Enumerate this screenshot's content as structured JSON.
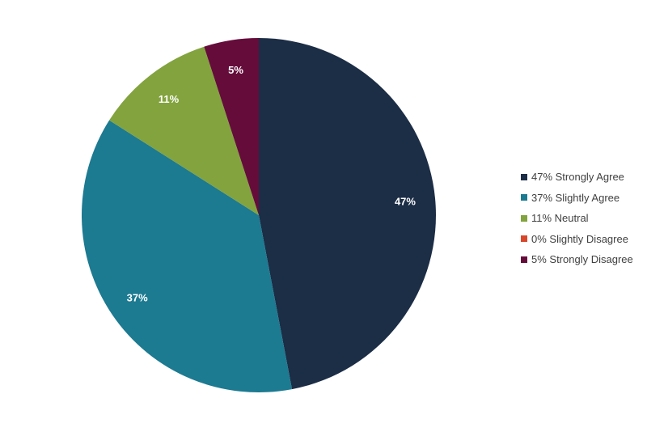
{
  "chart_data": {
    "type": "pie",
    "title": "",
    "start_angle_deg": 0,
    "direction": "clockwise",
    "legend_position": "right",
    "slices": [
      {
        "label": "47% Strongly Agree",
        "value": 47,
        "display": "47%",
        "color": "#1c2d46"
      },
      {
        "label": "37% Slightly Agree",
        "value": 37,
        "display": "37%",
        "color": "#1c7a91"
      },
      {
        "label": "11% Neutral",
        "value": 11,
        "display": "11%",
        "color": "#82a33d"
      },
      {
        "label": "0% Slightly Disagree",
        "value": 0,
        "display": "",
        "color": "#d9472b"
      },
      {
        "label": "5% Strongly Disagree",
        "value": 5,
        "display": "5%",
        "color": "#650c3b"
      }
    ]
  }
}
